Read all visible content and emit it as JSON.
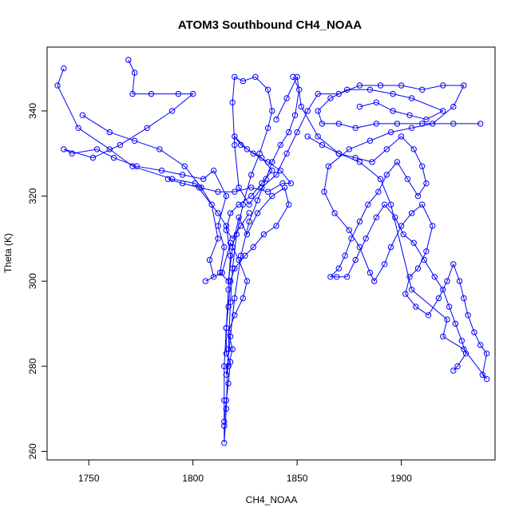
{
  "chart_data": {
    "type": "scatter",
    "title": "ATOM3 Southbound CH4_NOAA",
    "xlabel": "CH4_NOAA",
    "ylabel": "Theta (K)",
    "xlim": [
      1730,
      1945
    ],
    "ylim": [
      258,
      355
    ],
    "x_ticks": [
      1750,
      1800,
      1850,
      1900
    ],
    "y_ticks": [
      260,
      280,
      300,
      320,
      340
    ],
    "grid": false,
    "marker": "open-circle",
    "connected": true,
    "color": "#0000ff",
    "series": [
      {
        "values": [
          [
            1738,
            350
          ],
          [
            1735,
            346
          ],
          [
            1745,
            336
          ],
          [
            1760,
            331
          ],
          [
            1771,
            327
          ],
          [
            1790,
            324
          ],
          [
            1801,
            323
          ],
          [
            1812,
            316
          ],
          [
            1816,
            313
          ],
          [
            1818,
            306
          ],
          [
            1817,
            298
          ],
          [
            1816,
            289
          ],
          [
            1815,
            280
          ],
          [
            1815,
            272
          ],
          [
            1815,
            266
          ],
          [
            1815,
            262
          ],
          [
            1816,
            270
          ],
          [
            1817,
            284
          ],
          [
            1818,
            295
          ],
          [
            1819,
            303
          ],
          [
            1821,
            311
          ],
          [
            1824,
            318
          ],
          [
            1828,
            325
          ],
          [
            1832,
            330
          ],
          [
            1836,
            336
          ],
          [
            1838,
            340
          ],
          [
            1836,
            345
          ],
          [
            1830,
            348
          ],
          [
            1824,
            347
          ],
          [
            1820,
            348
          ],
          [
            1819,
            342
          ],
          [
            1820,
            332
          ],
          [
            1822,
            322
          ],
          [
            1827,
            318
          ],
          [
            1833,
            322
          ],
          [
            1840,
            325
          ],
          [
            1845,
            330
          ],
          [
            1850,
            335
          ],
          [
            1855,
            340
          ],
          [
            1860,
            344
          ],
          [
            1870,
            344
          ],
          [
            1880,
            346
          ],
          [
            1890,
            346
          ],
          [
            1900,
            346
          ],
          [
            1910,
            345
          ],
          [
            1920,
            346
          ],
          [
            1930,
            346
          ],
          [
            1925,
            341
          ],
          [
            1915,
            337
          ],
          [
            1905,
            336
          ],
          [
            1895,
            335
          ],
          [
            1885,
            333
          ],
          [
            1875,
            331
          ],
          [
            1865,
            327
          ],
          [
            1863,
            321
          ],
          [
            1868,
            316
          ],
          [
            1875,
            312
          ],
          [
            1880,
            308
          ],
          [
            1885,
            302
          ],
          [
            1887,
            300
          ],
          [
            1892,
            304
          ],
          [
            1895,
            308
          ],
          [
            1900,
            313
          ],
          [
            1905,
            316
          ],
          [
            1910,
            318
          ],
          [
            1915,
            313
          ],
          [
            1912,
            307
          ],
          [
            1908,
            303
          ],
          [
            1904,
            301
          ],
          [
            1902,
            297
          ],
          [
            1907,
            294
          ],
          [
            1913,
            292
          ],
          [
            1918,
            296
          ],
          [
            1922,
            300
          ],
          [
            1925,
            304
          ],
          [
            1928,
            300
          ],
          [
            1930,
            296
          ],
          [
            1932,
            292
          ],
          [
            1935,
            288
          ],
          [
            1938,
            285
          ],
          [
            1941,
            283
          ],
          [
            1939,
            278
          ],
          [
            1941,
            277
          ],
          [
            1930,
            284
          ],
          [
            1920,
            287
          ],
          [
            1922,
            291
          ],
          [
            1905,
            298
          ],
          [
            1895,
            318
          ],
          [
            1890,
            324
          ],
          [
            1880,
            328
          ],
          [
            1870,
            330
          ],
          [
            1860,
            334
          ],
          [
            1852,
            341
          ],
          [
            1850,
            348
          ],
          [
            1845,
            343
          ],
          [
            1840,
            338
          ]
        ]
      },
      {
        "values": [
          [
            1769,
            352
          ],
          [
            1772,
            349
          ],
          [
            1771,
            344
          ],
          [
            1780,
            344
          ],
          [
            1793,
            344
          ],
          [
            1800,
            344
          ],
          [
            1790,
            340
          ],
          [
            1778,
            336
          ],
          [
            1765,
            332
          ],
          [
            1752,
            329
          ],
          [
            1738,
            331
          ],
          [
            1742,
            330
          ],
          [
            1754,
            331
          ],
          [
            1762,
            329
          ],
          [
            1773,
            327
          ],
          [
            1785,
            326
          ],
          [
            1795,
            325
          ],
          [
            1805,
            324
          ],
          [
            1810,
            326
          ],
          [
            1816,
            320
          ],
          [
            1812,
            313
          ],
          [
            1815,
            308
          ],
          [
            1813,
            302
          ],
          [
            1817,
            300
          ],
          [
            1819,
            308
          ],
          [
            1822,
            315
          ],
          [
            1826,
            311
          ],
          [
            1831,
            316
          ],
          [
            1838,
            320
          ],
          [
            1844,
            322
          ],
          [
            1846,
            318
          ],
          [
            1840,
            313
          ],
          [
            1834,
            311
          ],
          [
            1829,
            308
          ],
          [
            1825,
            306
          ],
          [
            1820,
            303
          ],
          [
            1818,
            300
          ],
          [
            1817,
            294
          ],
          [
            1816,
            289
          ],
          [
            1816,
            283
          ],
          [
            1818,
            281
          ],
          [
            1817,
            276
          ],
          [
            1816,
            272
          ],
          [
            1815,
            267
          ]
        ]
      },
      {
        "values": [
          [
            1747,
            339
          ],
          [
            1760,
            335
          ],
          [
            1772,
            333
          ],
          [
            1784,
            331
          ],
          [
            1796,
            327
          ],
          [
            1804,
            322
          ],
          [
            1809,
            318
          ],
          [
            1812,
            310
          ],
          [
            1808,
            305
          ],
          [
            1810,
            301
          ],
          [
            1806,
            300
          ],
          [
            1814,
            302
          ],
          [
            1818,
            309
          ],
          [
            1822,
            305
          ],
          [
            1826,
            300
          ],
          [
            1824,
            296
          ],
          [
            1820,
            292
          ],
          [
            1817,
            288
          ],
          [
            1819,
            284
          ],
          [
            1817,
            280
          ],
          [
            1816,
            278
          ],
          [
            1818,
            287
          ],
          [
            1820,
            296
          ],
          [
            1823,
            306
          ],
          [
            1827,
            314
          ],
          [
            1831,
            319
          ],
          [
            1835,
            324
          ],
          [
            1838,
            328
          ],
          [
            1842,
            332
          ],
          [
            1846,
            335
          ],
          [
            1849,
            339
          ],
          [
            1851,
            345
          ],
          [
            1848,
            348
          ]
        ]
      },
      {
        "values": [
          [
            1855,
            334
          ],
          [
            1862,
            332
          ],
          [
            1870,
            330
          ],
          [
            1878,
            329
          ],
          [
            1886,
            328
          ],
          [
            1893,
            331
          ],
          [
            1900,
            334
          ],
          [
            1906,
            331
          ],
          [
            1910,
            327
          ],
          [
            1912,
            323
          ],
          [
            1908,
            320
          ],
          [
            1903,
            324
          ],
          [
            1898,
            328
          ],
          [
            1893,
            325
          ],
          [
            1889,
            321
          ],
          [
            1884,
            318
          ],
          [
            1880,
            314
          ],
          [
            1876,
            310
          ],
          [
            1873,
            306
          ],
          [
            1870,
            303
          ],
          [
            1866,
            301
          ],
          [
            1869,
            301
          ],
          [
            1874,
            301
          ],
          [
            1878,
            305
          ],
          [
            1883,
            310
          ],
          [
            1888,
            315
          ],
          [
            1892,
            318
          ],
          [
            1897,
            315
          ],
          [
            1901,
            311
          ],
          [
            1906,
            309
          ],
          [
            1911,
            305
          ],
          [
            1916,
            301
          ],
          [
            1920,
            298
          ],
          [
            1923,
            294
          ],
          [
            1926,
            290
          ],
          [
            1929,
            286
          ],
          [
            1931,
            283
          ],
          [
            1927,
            280
          ],
          [
            1925,
            279
          ]
        ]
      },
      {
        "values": [
          [
            1880,
            341
          ],
          [
            1888,
            342
          ],
          [
            1896,
            340
          ],
          [
            1904,
            339
          ],
          [
            1912,
            338
          ],
          [
            1920,
            340
          ],
          [
            1905,
            343
          ],
          [
            1896,
            344
          ],
          [
            1885,
            345
          ],
          [
            1874,
            345
          ],
          [
            1866,
            343
          ],
          [
            1860,
            340
          ],
          [
            1862,
            337
          ],
          [
            1870,
            337
          ],
          [
            1878,
            336
          ],
          [
            1888,
            337
          ],
          [
            1898,
            337
          ],
          [
            1910,
            337
          ],
          [
            1925,
            337
          ],
          [
            1938,
            337
          ]
        ]
      },
      {
        "values": [
          [
            1788,
            324
          ],
          [
            1795,
            323
          ],
          [
            1803,
            322
          ],
          [
            1812,
            321
          ],
          [
            1820,
            321
          ],
          [
            1828,
            322
          ],
          [
            1836,
            321
          ],
          [
            1843,
            323
          ],
          [
            1847,
            323
          ],
          [
            1842,
            326
          ],
          [
            1836,
            328
          ],
          [
            1829,
            330
          ],
          [
            1823,
            332
          ],
          [
            1820,
            334
          ],
          [
            1826,
            331
          ],
          [
            1833,
            329
          ],
          [
            1838,
            326
          ],
          [
            1833,
            323
          ],
          [
            1828,
            320
          ],
          [
            1822,
            318
          ],
          [
            1818,
            316
          ],
          [
            1816,
            312
          ],
          [
            1819,
            310
          ],
          [
            1823,
            313
          ],
          [
            1827,
            316
          ]
        ]
      }
    ]
  }
}
